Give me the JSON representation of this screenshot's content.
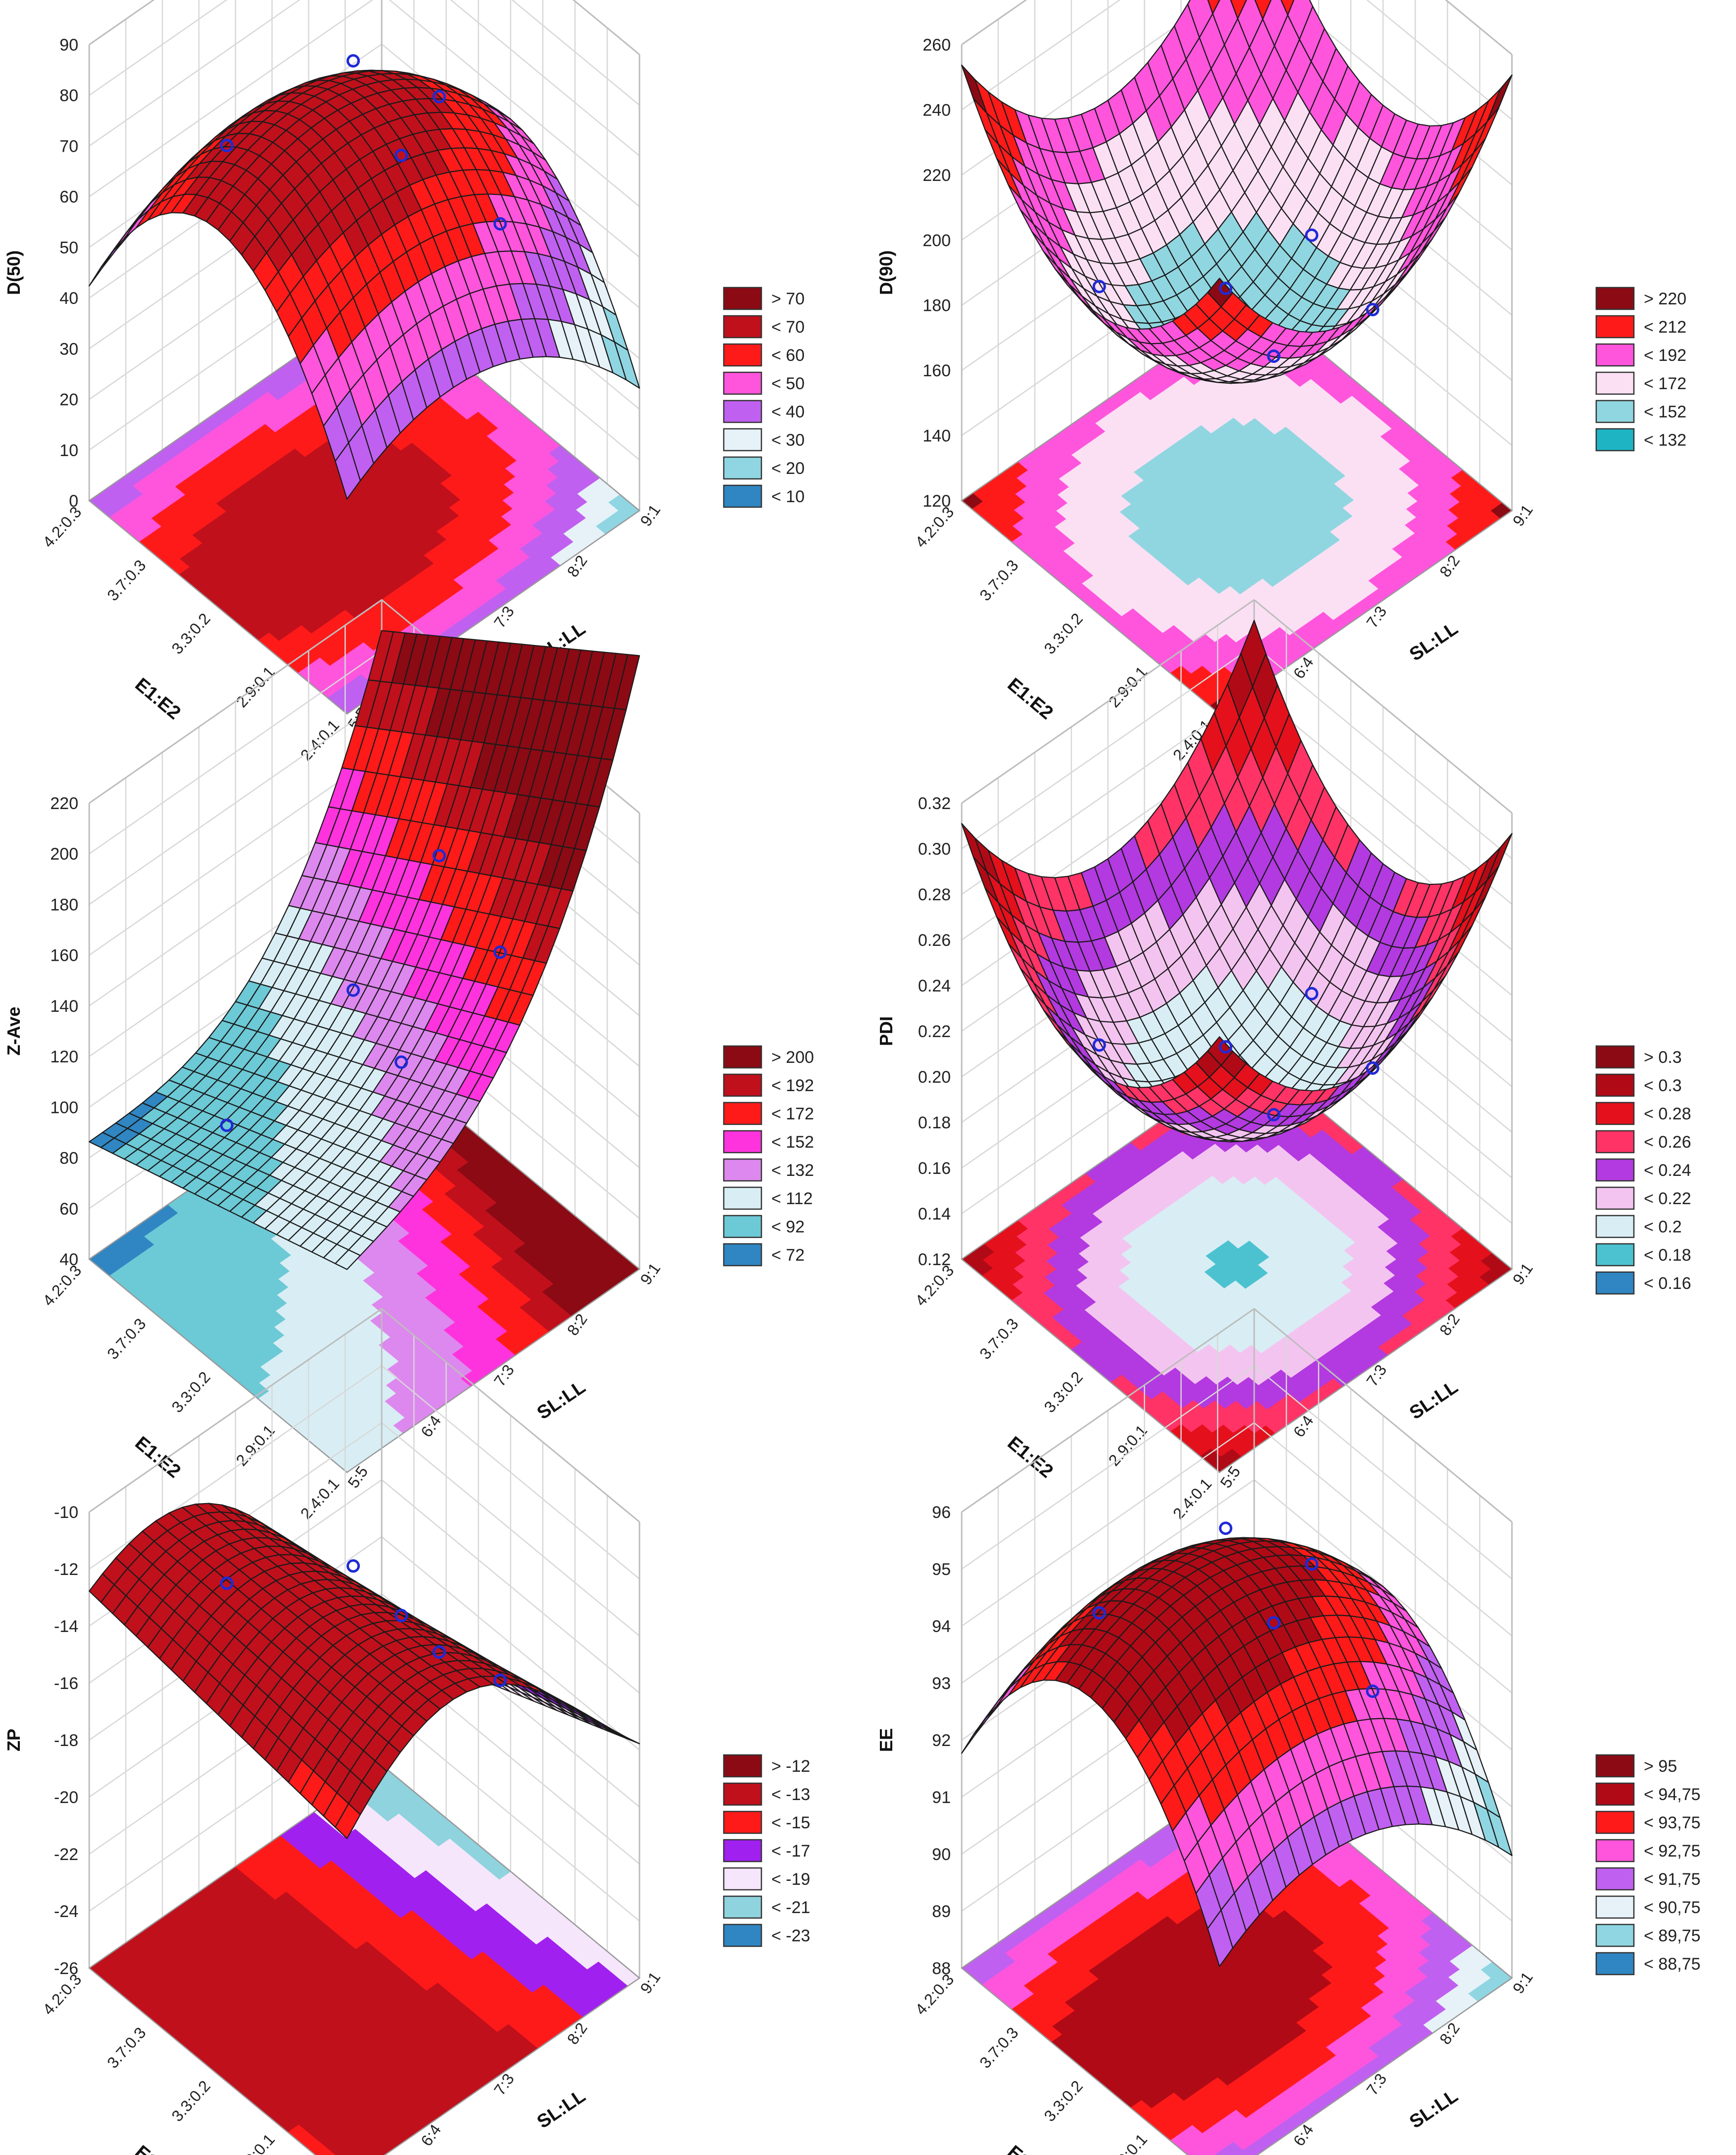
{
  "axis_labels": {
    "x": "SL:LL",
    "y": "E1:E2"
  },
  "x_ticks": [
    "5:5",
    "6:4",
    "7:3",
    "8:2",
    "9:1"
  ],
  "y_ticks": [
    "2.4:0.1",
    "2.9:0.1",
    "3.3:0.2",
    "3.7:0.3",
    "4.2:0.3"
  ],
  "chart_data": [
    {
      "type": "surface3d",
      "zlabel": "D(50)",
      "shape": "dome",
      "zticks": [
        "0",
        "10",
        "20",
        "30",
        "40",
        "50",
        "60",
        "70",
        "80",
        "90"
      ],
      "zlim": [
        0,
        90
      ],
      "legend": [
        {
          "label": "> 70",
          "color": "#8b0a14"
        },
        {
          "label": "< 70",
          "color": "#c0101c"
        },
        {
          "label": "< 60",
          "color": "#ff1a1a"
        },
        {
          "label": "< 50",
          "color": "#ff55dd"
        },
        {
          "label": "< 40",
          "color": "#c060f0"
        },
        {
          "label": "< 30",
          "color": "#e6f2f8"
        },
        {
          "label": "< 20",
          "color": "#8fd6e2"
        },
        {
          "label": "< 10",
          "color": "#2f86c2"
        }
      ]
    },
    {
      "type": "surface3d",
      "zlabel": "D(90)",
      "shape": "bowl",
      "zticks": [
        "120",
        "140",
        "160",
        "180",
        "200",
        "220",
        "240",
        "260"
      ],
      "zlim": [
        120,
        260
      ],
      "legend": [
        {
          "label": "> 220",
          "color": "#8b0a14"
        },
        {
          "label": "< 212",
          "color": "#ff1a1a"
        },
        {
          "label": "< 192",
          "color": "#ff55dd"
        },
        {
          "label": "< 172",
          "color": "#fbe0f4"
        },
        {
          "label": "< 152",
          "color": "#90d6e0"
        },
        {
          "label": "< 132",
          "color": "#1eb4c4"
        }
      ]
    },
    {
      "type": "surface3d",
      "zlabel": "Z-Ave",
      "shape": "saddle",
      "zticks": [
        "40",
        "60",
        "80",
        "100",
        "120",
        "140",
        "160",
        "180",
        "200",
        "220"
      ],
      "zlim": [
        40,
        220
      ],
      "legend": [
        {
          "label": "> 200",
          "color": "#8b0a14"
        },
        {
          "label": "< 192",
          "color": "#c0101c"
        },
        {
          "label": "< 172",
          "color": "#ff1a1a"
        },
        {
          "label": "< 152",
          "color": "#ff33dd"
        },
        {
          "label": "< 132",
          "color": "#dd88ee"
        },
        {
          "label": "< 112",
          "color": "#d8eef4"
        },
        {
          "label": "< 92",
          "color": "#6cc9d6"
        },
        {
          "label": "< 72",
          "color": "#2f86c2"
        }
      ]
    },
    {
      "type": "surface3d",
      "zlabel": "PDI",
      "shape": "bowl",
      "zticks": [
        "0.12",
        "0.14",
        "0.16",
        "0.18",
        "0.20",
        "0.22",
        "0.24",
        "0.26",
        "0.28",
        "0.30",
        "0.32"
      ],
      "zlim": [
        0.12,
        0.32
      ],
      "legend": [
        {
          "label": "> 0.3",
          "color": "#8b0a14"
        },
        {
          "label": "< 0.3",
          "color": "#b00a16"
        },
        {
          "label": "< 0.28",
          "color": "#e4101c"
        },
        {
          "label": "< 0.26",
          "color": "#ff3366"
        },
        {
          "label": "< 0.24",
          "color": "#b23ae0"
        },
        {
          "label": "< 0.22",
          "color": "#f4c4f0"
        },
        {
          "label": "< 0.2",
          "color": "#d8eef4"
        },
        {
          "label": "< 0.18",
          "color": "#4cc2d0"
        },
        {
          "label": "< 0.16",
          "color": "#2f86c2"
        }
      ]
    },
    {
      "type": "surface3d",
      "zlabel": "ZP",
      "shape": "ridge",
      "zticks": [
        "-26",
        "-24",
        "-22",
        "-20",
        "-18",
        "-16",
        "-14",
        "-12",
        "-10"
      ],
      "zlim": [
        -26,
        -10
      ],
      "legend": [
        {
          "label": "> -12",
          "color": "#8b0a14"
        },
        {
          "label": "< -13",
          "color": "#c0101c"
        },
        {
          "label": "< -15",
          "color": "#ff1a1a"
        },
        {
          "label": "< -17",
          "color": "#a020f0"
        },
        {
          "label": "< -19",
          "color": "#f6e6fb"
        },
        {
          "label": "< -21",
          "color": "#8ed3de"
        },
        {
          "label": "< -23",
          "color": "#2f86c2"
        }
      ]
    },
    {
      "type": "surface3d",
      "zlabel": "EE",
      "shape": "dome",
      "zticks": [
        "88",
        "89",
        "90",
        "91",
        "92",
        "93",
        "94",
        "95",
        "96"
      ],
      "zlim": [
        88,
        96
      ],
      "legend": [
        {
          "label": "> 95",
          "color": "#8b0a14"
        },
        {
          "label": "< 94,75",
          "color": "#b00a16"
        },
        {
          "label": "< 93,75",
          "color": "#ff1a1a"
        },
        {
          "label": "< 92,75",
          "color": "#ff55dd"
        },
        {
          "label": "< 91,75",
          "color": "#c060f0"
        },
        {
          "label": "< 90,75",
          "color": "#e6f2f8"
        },
        {
          "label": "< 89,75",
          "color": "#8fd6e2"
        },
        {
          "label": "< 88,75",
          "color": "#2f86c2"
        }
      ]
    }
  ]
}
